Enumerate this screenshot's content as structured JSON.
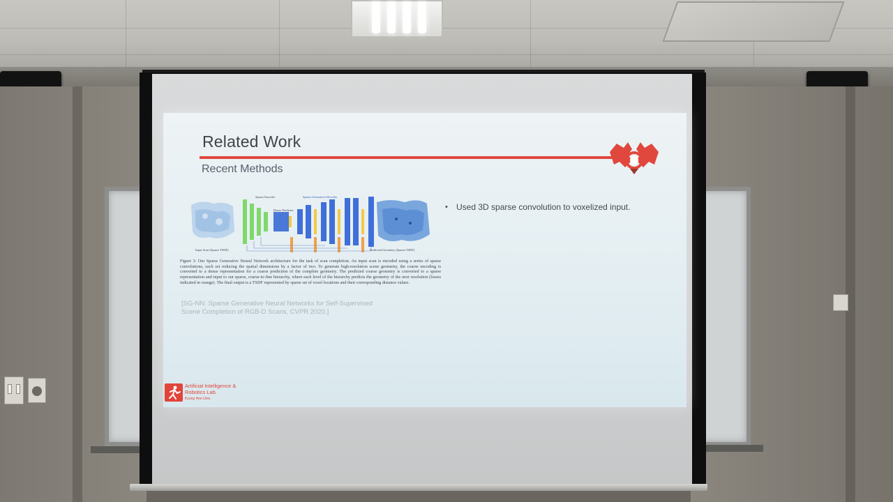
{
  "slide": {
    "title": "Related Work",
    "subtitle": "Recent Methods",
    "figure": {
      "labels": {
        "sparse_encoder": "Sparse Encoder",
        "sparse_generative_decoder": "Sparse Generative Decoder",
        "dense_predictor": "Dense Predictor",
        "input_scan": "Input Scan (Sparse TSDF)",
        "predicted_geometry": "Predicted Geometry (Sparse TSDF)"
      }
    },
    "caption": "Figure 3: Our Sparse Generative Neural Network architecture for the task of scan completion. An input scan is encoded using a series of sparse convolutions, each set reducing the spatial dimensions by a factor of two. To generate high-resolution scene geometry, the coarse encoding is converted to a dense representation for a coarse prediction of the complete geometry. The predicted coarse geometry is converted to a sparse representation and input to our sparse, coarse-to-fine hierarchy, where each level of the hierarchy predicts the geometry of the next resolution (losses indicated in orange). The final output is a TSDF represented by sparse set of voxel locations and their corresponding distance values.",
    "reference_line1": "[SG-NN: Sparse Generative Neural Networks for Self-Supervised",
    "reference_line2": "Scene Completion of RGB-D Scans, CVPR 2020.]",
    "bullets": [
      "Used 3D sparse convolution to voxelized input."
    ],
    "footer": {
      "lab_name_line1": "Artificial Intelligence &",
      "lab_name_line2": "Robotics Lab.",
      "university": "Kyung Hee Univ."
    }
  },
  "colors": {
    "accent_red": "#e0483d",
    "slide_bg": "#e4eef2",
    "encoder_green": "#7fd86b",
    "decoder_blue": "#3f6fd8",
    "loss_orange": "#f2a04a"
  }
}
